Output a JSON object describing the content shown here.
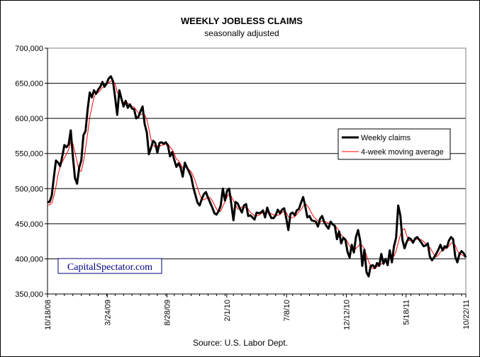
{
  "chart_data": {
    "type": "line",
    "title": "WEEKLY JOBLESS CLAIMS",
    "subtitle": "seasonally adjusted",
    "source": "Source: U.S. Labor Dept.",
    "watermark": "CapitalSpectator.com",
    "ylim": [
      350000,
      700000
    ],
    "y_ticks": [
      "350,000",
      "400,000",
      "450,000",
      "500,000",
      "550,000",
      "600,000",
      "650,000",
      "700,000"
    ],
    "x_tick_labels": [
      "10/18/08",
      "3/24/09",
      "8/28/09",
      "2/1/10",
      "7/8/10",
      "12/12/10",
      "5/18/11",
      "10/22/11"
    ],
    "grid": true,
    "legend_position": "right",
    "colors": {
      "weekly": "#000000",
      "moving_average": "#ff0000",
      "watermark_border": "#000080",
      "watermark_text": "#000080"
    },
    "series": [
      {
        "name": "Weekly claims",
        "values": [
          481000,
          481000,
          490000,
          516000,
          540000,
          537000,
          532000,
          546000,
          562000,
          559000,
          563000,
          583000,
          546000,
          515000,
          507000,
          530000,
          540000,
          576000,
          582000,
          613000,
          637000,
          630000,
          640000,
          635000,
          641000,
          645000,
          652000,
          645000,
          650000,
          657000,
          660000,
          653000,
          630000,
          605000,
          640000,
          628000,
          617000,
          625000,
          615000,
          620000,
          614000,
          613000,
          600000,
          602000,
          610000,
          617000,
          592000,
          580000,
          549000,
          558000,
          568000,
          565000,
          551000,
          565000,
          566000,
          564000,
          566000,
          561000,
          546000,
          552000,
          541000,
          531000,
          536000,
          530000,
          517000,
          537000,
          530000,
          524000,
          517000,
          502000,
          491000,
          480000,
          476000,
          485000,
          492000,
          495000,
          487000,
          480000,
          473000,
          465000,
          463000,
          468000,
          476000,
          500000,
          483000,
          497000,
          500000,
          478000,
          455000,
          481000,
          479000,
          472000,
          466000,
          476000,
          478000,
          461000,
          462000,
          459000,
          456000,
          466000,
          465000,
          466000,
          469000,
          459000,
          473000,
          464000,
          458000,
          458000,
          462000,
          470000,
          465000,
          470000,
          472000,
          458000,
          441000,
          464000,
          466000,
          462000,
          469000,
          471000,
          480000,
          488000,
          475000,
          459000,
          461000,
          455000,
          454000,
          453000,
          446000,
          457000,
          461000,
          452000,
          447000,
          443000,
          453000,
          449000,
          447000,
          428000,
          439000,
          422000,
          430000,
          427000,
          410000,
          402000,
          420000,
          409000,
          431000,
          441000,
          426000,
          390000,
          413000,
          381000,
          375000,
          390000,
          391000,
          387000,
          394000,
          390000,
          407000,
          393000,
          400000,
          391000,
          412000,
          395000,
          418000,
          430000,
          476000,
          462000,
          427000,
          415000,
          424000,
          430000,
          428000,
          423000,
          429000,
          431000,
          427000,
          423000,
          418000,
          419000,
          422000,
          403000,
          398000,
          402000,
          407000,
          413000,
          420000,
          412000,
          418000,
          416000,
          426000,
          431000,
          428000,
          403000,
          395000,
          407000,
          411000,
          408000,
          402000
        ]
      },
      {
        "name": "4-week moving average",
        "values": [
          477000,
          477000,
          479000,
          489000,
          503000,
          520000,
          531000,
          538000,
          544000,
          549000,
          556000,
          567000,
          564000,
          552000,
          538000,
          525000,
          525000,
          538000,
          557000,
          578000,
          602000,
          616000,
          630000,
          636000,
          637000,
          640000,
          644000,
          646000,
          648000,
          651000,
          653000,
          653000,
          650000,
          637000,
          633000,
          627000,
          622000,
          626000,
          621000,
          620000,
          617000,
          616000,
          612000,
          608000,
          606000,
          606000,
          605000,
          599000,
          585000,
          570000,
          562000,
          559000,
          561000,
          560000,
          562000,
          562000,
          564000,
          564000,
          559000,
          556000,
          550000,
          542000,
          540000,
          535000,
          529000,
          531000,
          530000,
          527000,
          524000,
          518000,
          510000,
          501000,
          492000,
          485000,
          484000,
          486000,
          488000,
          487000,
          483000,
          477000,
          471000,
          467000,
          468000,
          475000,
          481000,
          488000,
          493000,
          489000,
          483000,
          477000,
          471000,
          471000,
          474000,
          473000,
          473000,
          471000,
          466000,
          464000,
          461000,
          461000,
          462000,
          464000,
          466000,
          465000,
          466000,
          466000,
          464000,
          463000,
          462000,
          462000,
          463000,
          466000,
          468000,
          466000,
          460000,
          458000,
          459000,
          460000,
          463000,
          467000,
          470000,
          475000,
          478000,
          476000,
          471000,
          465000,
          460000,
          457000,
          454000,
          452000,
          454000,
          454000,
          452000,
          451000,
          450000,
          449000,
          448000,
          444000,
          440000,
          434000,
          431000,
          429000,
          424000,
          418000,
          414000,
          410000,
          415000,
          418000,
          421000,
          419000,
          414000,
          405000,
          396000,
          390000,
          386000,
          386000,
          389000,
          390000,
          393000,
          394000,
          397000,
          397000,
          400000,
          400000,
          404000,
          411000,
          423000,
          434000,
          441000,
          443000,
          433000,
          426000,
          426000,
          426000,
          427000,
          428000,
          428000,
          427000,
          425000,
          421000,
          420000,
          416000,
          411000,
          406000,
          403000,
          405000,
          410000,
          412000,
          414000,
          415000,
          418000,
          422000,
          424000,
          419000,
          412000,
          406000,
          406000,
          404000,
          404000
        ]
      }
    ]
  }
}
